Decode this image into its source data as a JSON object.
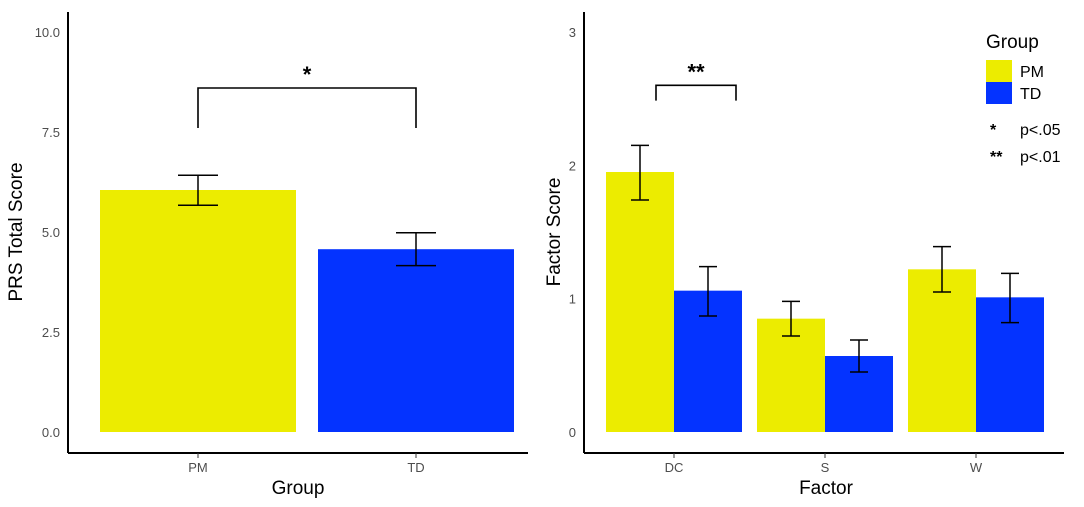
{
  "colors": {
    "PM": "#ecec00",
    "TD": "#0433ff",
    "axis": "#000000",
    "tick_text": "#4d4d4d"
  },
  "chart_data": [
    {
      "type": "bar",
      "title": "",
      "xlabel": "Group",
      "ylabel": "PRS Total Score",
      "categories": [
        "PM",
        "TD"
      ],
      "values": [
        6.05,
        4.57
      ],
      "errors": [
        [
          5.67,
          6.42
        ],
        [
          4.16,
          4.98
        ]
      ],
      "bar_colors": [
        "#ecec00",
        "#0433ff"
      ],
      "ylim": [
        0,
        10.5
      ],
      "yticks": [
        0,
        2.5,
        5,
        7.5,
        10
      ],
      "ytick_labels": [
        "0.0",
        "2.5",
        "5.0",
        "7.5",
        "10.0"
      ],
      "significance": [
        {
          "from": "PM",
          "to": "TD",
          "label": "*",
          "level": 8.6,
          "drop": 7.6
        }
      ]
    },
    {
      "type": "bar",
      "title": "",
      "xlabel": "Factor",
      "ylabel": "Factor Score",
      "categories": [
        "DC",
        "S",
        "W"
      ],
      "series": [
        {
          "name": "PM",
          "values": [
            1.95,
            0.85,
            1.22
          ],
          "errors": [
            [
              1.74,
              2.15
            ],
            [
              0.72,
              0.98
            ],
            [
              1.05,
              1.39
            ]
          ]
        },
        {
          "name": "TD",
          "values": [
            1.06,
            0.57,
            1.01
          ],
          "errors": [
            [
              0.87,
              1.24
            ],
            [
              0.45,
              0.69
            ],
            [
              0.82,
              1.19
            ]
          ]
        }
      ],
      "ylim": [
        0,
        3
      ],
      "yticks": [
        0,
        1,
        2,
        3
      ],
      "ytick_labels": [
        "0",
        "1",
        "2",
        "3"
      ],
      "significance": [
        {
          "category": "DC",
          "label": "**",
          "level": 2.6,
          "drop": 2.5
        }
      ],
      "legend": {
        "title": "Group",
        "entries": [
          "PM",
          "TD"
        ],
        "placement": "top-right",
        "notes": [
          {
            "stars": "*",
            "text": "p<.05"
          },
          {
            "stars": "**",
            "text": "p<.01"
          }
        ]
      }
    }
  ]
}
